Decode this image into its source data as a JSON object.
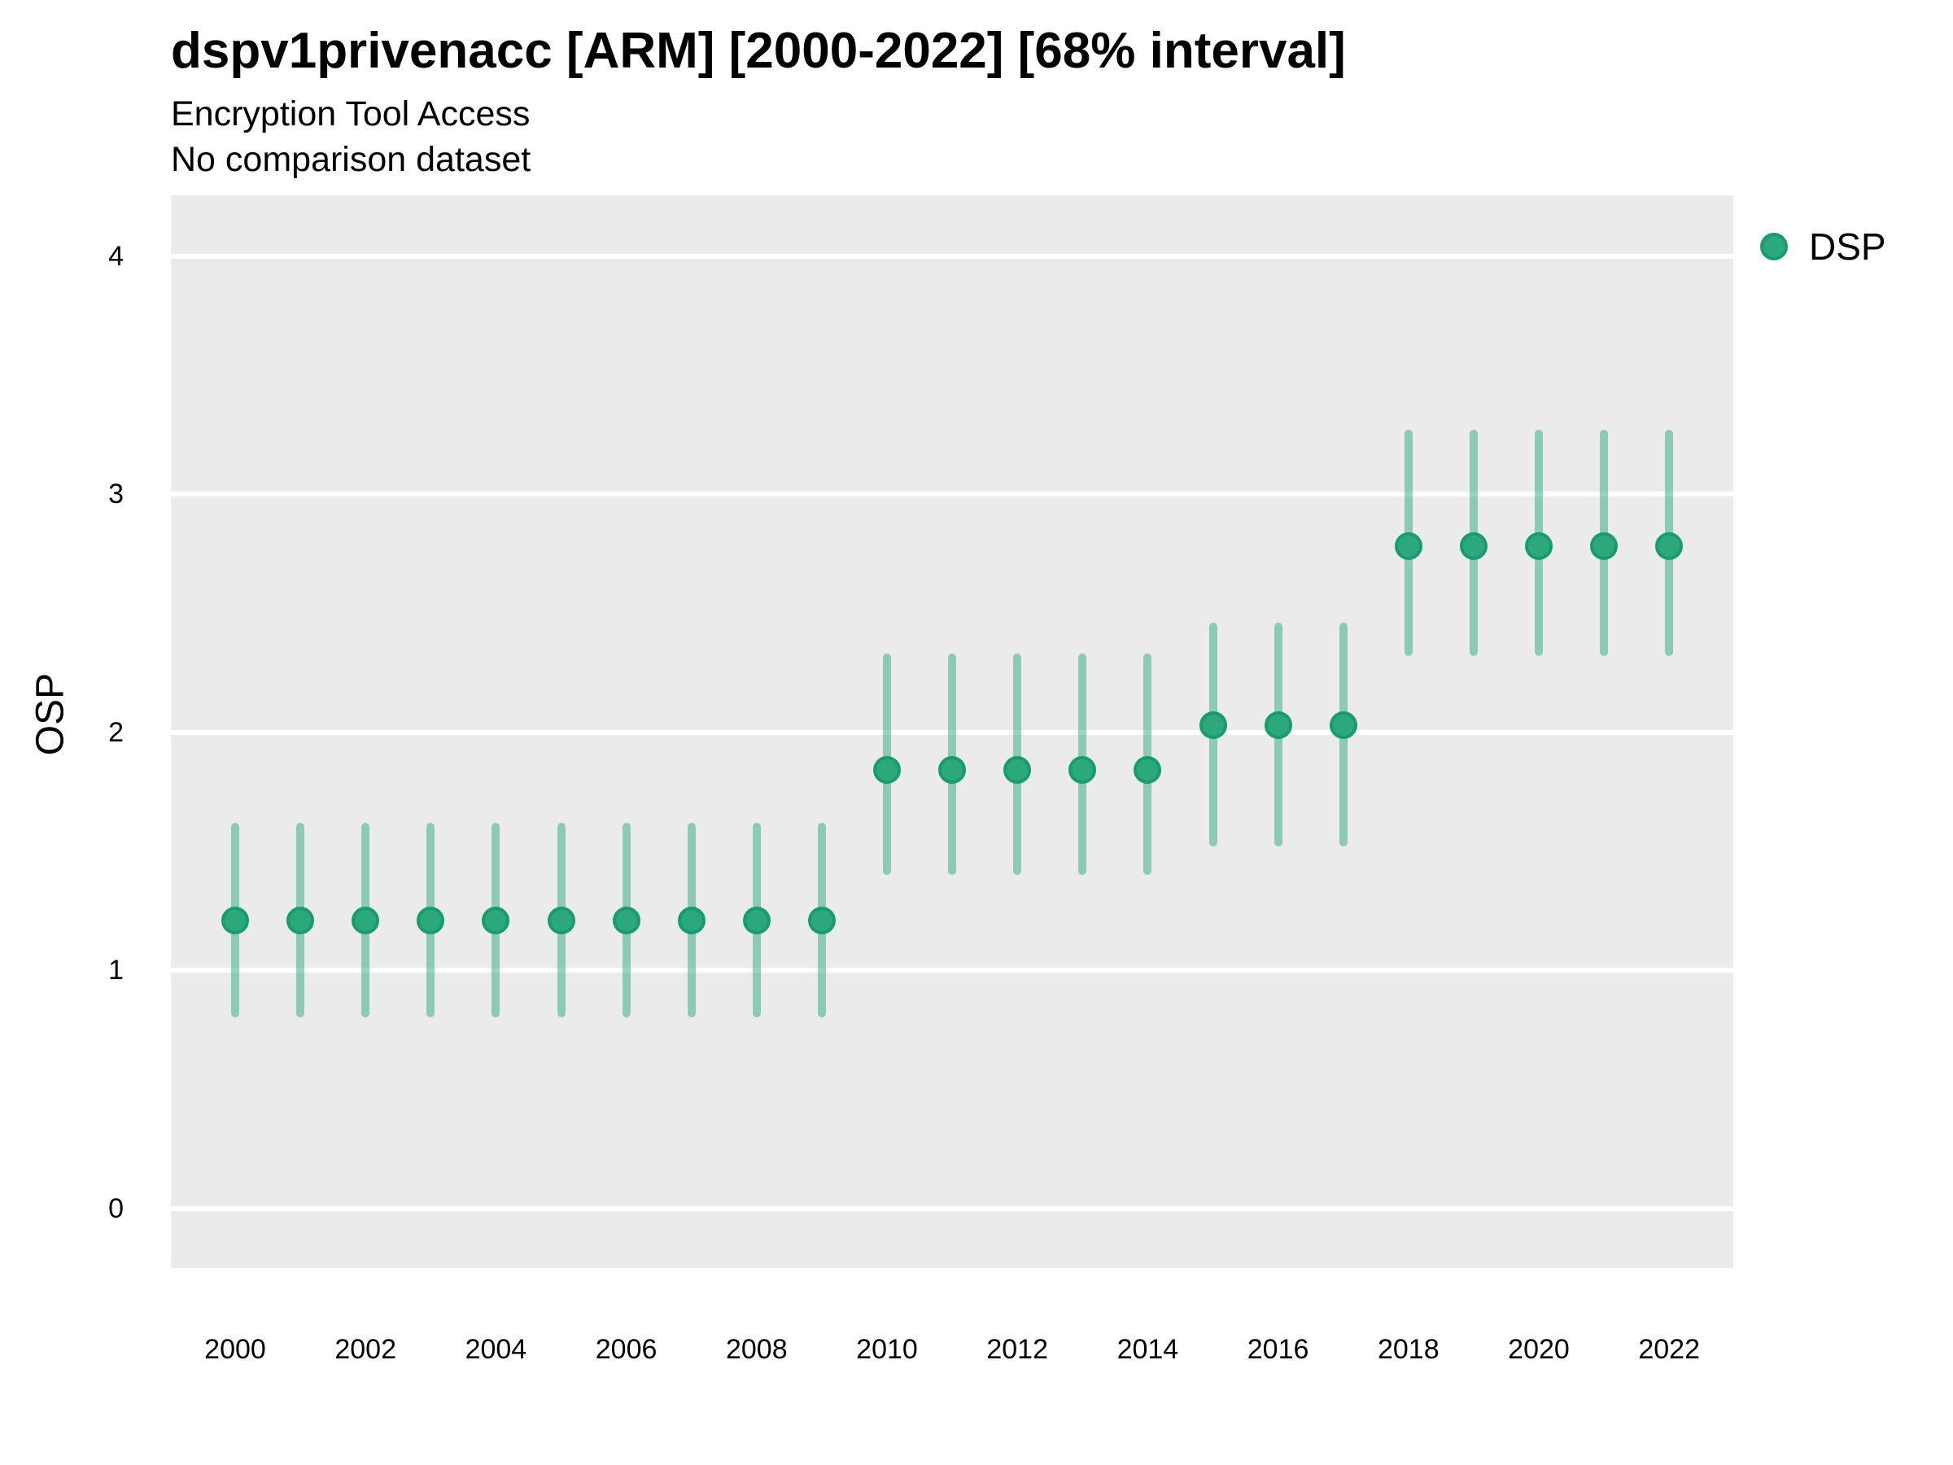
{
  "header": {
    "title": "dspv1privenacc [ARM] [2000-2022] [68% interval]",
    "subtitle": "Encryption Tool Access",
    "note": "No comparison dataset"
  },
  "legend": {
    "label": "DSP",
    "position": "right-top"
  },
  "colors": {
    "point_fill": "#2BA97C",
    "point_stroke": "#189C69",
    "interval": "#2BA97C",
    "panel_background": "#EBEBEB",
    "gridline": "#FFFFFF",
    "text": "#000000"
  },
  "chart_data": {
    "type": "scatter",
    "subtype": "pointrange",
    "title": "dspv1privenacc [ARM] [2000-2022] [68% interval]",
    "subtitle": "Encryption Tool Access",
    "note": "No comparison dataset",
    "xlabel": "",
    "ylabel": "OSP",
    "interval": "68%",
    "grid": "horizontal-major-only",
    "legend_position": "right-top",
    "ylim": [
      -0.25,
      4.26
    ],
    "yticks": [
      0,
      1,
      2,
      3,
      4
    ],
    "xticks": [
      2000,
      2002,
      2004,
      2006,
      2008,
      2010,
      2012,
      2014,
      2016,
      2018,
      2020,
      2022
    ],
    "x": [
      2000,
      2001,
      2002,
      2003,
      2004,
      2005,
      2006,
      2007,
      2008,
      2009,
      2010,
      2011,
      2012,
      2013,
      2014,
      2015,
      2016,
      2017,
      2018,
      2019,
      2020,
      2021,
      2022
    ],
    "series": [
      {
        "name": "DSP",
        "values": [
          1.21,
          1.21,
          1.21,
          1.21,
          1.21,
          1.21,
          1.21,
          1.21,
          1.21,
          1.21,
          1.84,
          1.84,
          1.84,
          1.84,
          1.84,
          2.03,
          2.03,
          2.03,
          2.78,
          2.78,
          2.78,
          2.78,
          2.78
        ],
        "lower": [
          0.8,
          0.8,
          0.8,
          0.8,
          0.8,
          0.8,
          0.8,
          0.8,
          0.8,
          0.8,
          1.4,
          1.4,
          1.4,
          1.4,
          1.4,
          1.52,
          1.52,
          1.52,
          2.32,
          2.32,
          2.32,
          2.32,
          2.32
        ],
        "upper": [
          1.62,
          1.62,
          1.62,
          1.62,
          1.62,
          1.62,
          1.62,
          1.62,
          1.62,
          1.62,
          2.33,
          2.33,
          2.33,
          2.33,
          2.33,
          2.46,
          2.46,
          2.46,
          3.27,
          3.27,
          3.27,
          3.27,
          3.27
        ]
      }
    ]
  }
}
